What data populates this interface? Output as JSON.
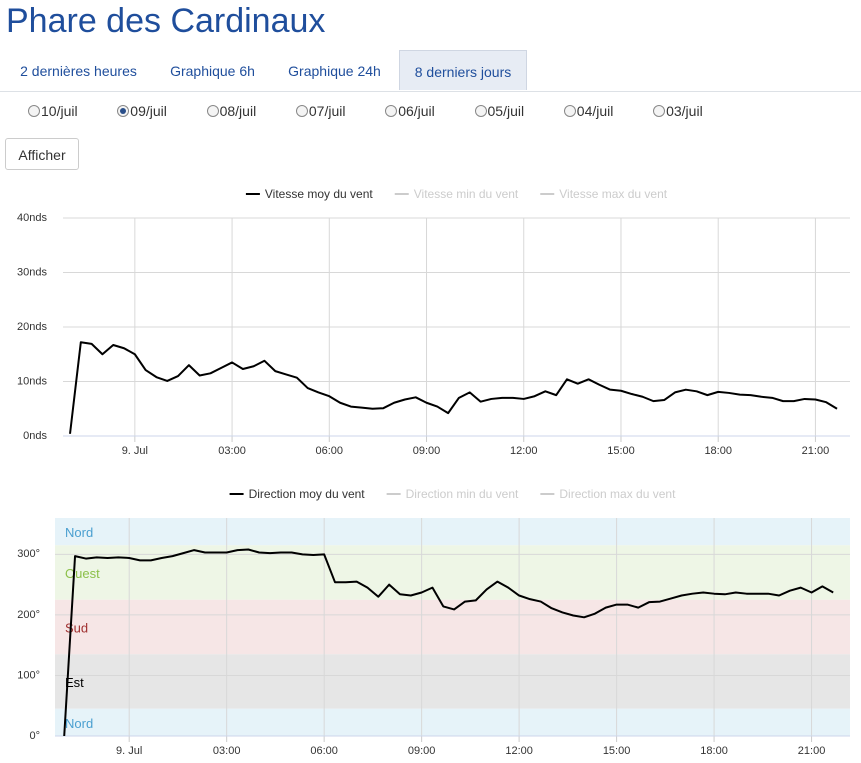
{
  "header": {
    "title": "Phare des Cardinaux"
  },
  "tabs": {
    "items": [
      "2 dernières heures",
      "Graphique 6h",
      "Graphique 24h",
      "8 derniers jours"
    ],
    "active": 3
  },
  "dates": {
    "items": [
      "10/juil",
      "09/juil",
      "08/juil",
      "07/juil",
      "06/juil",
      "05/juil",
      "04/juil",
      "03/juil"
    ],
    "selected": 1
  },
  "button": "Afficher",
  "chart_data": [
    {
      "type": "line",
      "legend_inactive": [
        "Vitesse min du vent",
        "Vitesse max du vent"
      ],
      "x": [
        -120,
        -100,
        -80,
        -60,
        -40,
        -20,
        0,
        20,
        40,
        60,
        80,
        100,
        120,
        140,
        160,
        180,
        200,
        220,
        240,
        260,
        280,
        300,
        320,
        340,
        360,
        380,
        400,
        420,
        440,
        460,
        480,
        500,
        520,
        540,
        560,
        580,
        600,
        620,
        640,
        660,
        680,
        700,
        720,
        740,
        760,
        780,
        800,
        820,
        840,
        860,
        880,
        900,
        920,
        940,
        960,
        980,
        1000,
        1020,
        1040,
        1060,
        1080,
        1100,
        1120,
        1140,
        1160,
        1180,
        1200,
        1220,
        1240,
        1260,
        1280,
        1300
      ],
      "series": [
        {
          "name": "Vitesse moy du vent",
          "color": "#000000",
          "values": [
            0.4,
            17.2,
            16.9,
            15,
            16.7,
            16.1,
            15,
            12.1,
            10.8,
            10.1,
            11,
            13,
            11.1,
            11.5,
            12.5,
            13.5,
            12.3,
            12.8,
            13.8,
            11.9,
            11.3,
            10.7,
            8.8,
            8,
            7.3,
            6.1,
            5.4,
            5.2,
            5,
            5.1,
            6.1,
            6.7,
            7.1,
            6.1,
            5.4,
            4.2,
            7,
            8,
            6.3,
            6.8,
            7,
            7,
            6.8,
            7.3,
            8.2,
            7.5,
            10.4,
            9.6,
            10.4,
            9.4,
            8.5,
            8.3,
            7.7,
            7.2,
            6.4,
            6.6,
            8,
            8.5,
            8.2,
            7.5,
            8.1,
            7.9,
            7.6,
            7.5,
            7.2,
            7,
            6.4,
            6.4,
            6.8,
            6.7,
            6.2,
            5
          ]
        }
      ],
      "xlim": [
        -133,
        1324
      ],
      "xticks": [
        {
          "value": 0,
          "label": "9. Jul"
        },
        {
          "value": 180,
          "label": "03:00"
        },
        {
          "value": 360,
          "label": "06:00"
        },
        {
          "value": 540,
          "label": "09:00"
        },
        {
          "value": 720,
          "label": "12:00"
        },
        {
          "value": 900,
          "label": "15:00"
        },
        {
          "value": 1080,
          "label": "18:00"
        },
        {
          "value": 1260,
          "label": "21:00"
        }
      ],
      "ylim": [
        0,
        40
      ],
      "yticks": [
        {
          "value": 0,
          "label": "0nds"
        },
        {
          "value": 10,
          "label": "10nds"
        },
        {
          "value": 20,
          "label": "20nds"
        },
        {
          "value": 30,
          "label": "30nds"
        },
        {
          "value": 40,
          "label": "40nds"
        }
      ],
      "grid": true
    },
    {
      "type": "line",
      "legend_inactive": [
        "Direction min du vent",
        "Direction max du vent"
      ],
      "x": [
        -120,
        -100,
        -80,
        -60,
        -40,
        -20,
        0,
        20,
        40,
        60,
        80,
        100,
        120,
        140,
        160,
        180,
        200,
        220,
        240,
        260,
        280,
        300,
        320,
        340,
        360,
        380,
        400,
        420,
        440,
        460,
        480,
        500,
        520,
        540,
        560,
        580,
        600,
        620,
        640,
        660,
        680,
        700,
        720,
        740,
        760,
        780,
        800,
        820,
        840,
        860,
        880,
        900,
        920,
        940,
        960,
        980,
        1000,
        1020,
        1040,
        1060,
        1080,
        1100,
        1120,
        1140,
        1160,
        1180,
        1200,
        1220,
        1240,
        1260,
        1280,
        1300
      ],
      "series": [
        {
          "name": "Direction moy du vent",
          "color": "#000000",
          "values": [
            0,
            297,
            293,
            295,
            294,
            295,
            294,
            290,
            290,
            294,
            297,
            302,
            307,
            303,
            303,
            303,
            307,
            308,
            303,
            302,
            303,
            303,
            300,
            299,
            300,
            254,
            254,
            255,
            245,
            230,
            250,
            234,
            232,
            237,
            245,
            214,
            209,
            222,
            224,
            242,
            255,
            245,
            232,
            226,
            222,
            211,
            204,
            199,
            196,
            202,
            212,
            217,
            217,
            212,
            221,
            222,
            227,
            232,
            235,
            237,
            235,
            234,
            237,
            235,
            235,
            235,
            232,
            240,
            245,
            237,
            247,
            237
          ]
        }
      ],
      "bands": [
        {
          "from": 315,
          "to": 360,
          "label": "Nord",
          "color": "#e6f3f9",
          "label_color": "#4a9fd0"
        },
        {
          "from": 225,
          "to": 315,
          "label": "Ouest",
          "color": "#eef6e6",
          "label_color": "#8cc04a"
        },
        {
          "from": 135,
          "to": 225,
          "label": "Sud",
          "color": "#f6e6e6",
          "label_color": "#a03030"
        },
        {
          "from": 45,
          "to": 135,
          "label": "Est",
          "color": "#e6e6e6",
          "label_color": "#000000"
        },
        {
          "from": 0,
          "to": 45,
          "label": "Nord",
          "color": "#e6f3f9",
          "label_color": "#4a9fd0"
        }
      ],
      "xlim": [
        -137,
        1331
      ],
      "xticks": [
        {
          "value": 0,
          "label": "9. Jul"
        },
        {
          "value": 180,
          "label": "03:00"
        },
        {
          "value": 360,
          "label": "06:00"
        },
        {
          "value": 540,
          "label": "09:00"
        },
        {
          "value": 720,
          "label": "12:00"
        },
        {
          "value": 900,
          "label": "15:00"
        },
        {
          "value": 1080,
          "label": "18:00"
        },
        {
          "value": 1260,
          "label": "21:00"
        }
      ],
      "ylim": [
        0,
        360
      ],
      "yticks": [
        {
          "value": 0,
          "label": "0°"
        },
        {
          "value": 100,
          "label": "100°"
        },
        {
          "value": 200,
          "label": "200°"
        },
        {
          "value": 300,
          "label": "300°"
        }
      ],
      "grid": true
    }
  ]
}
